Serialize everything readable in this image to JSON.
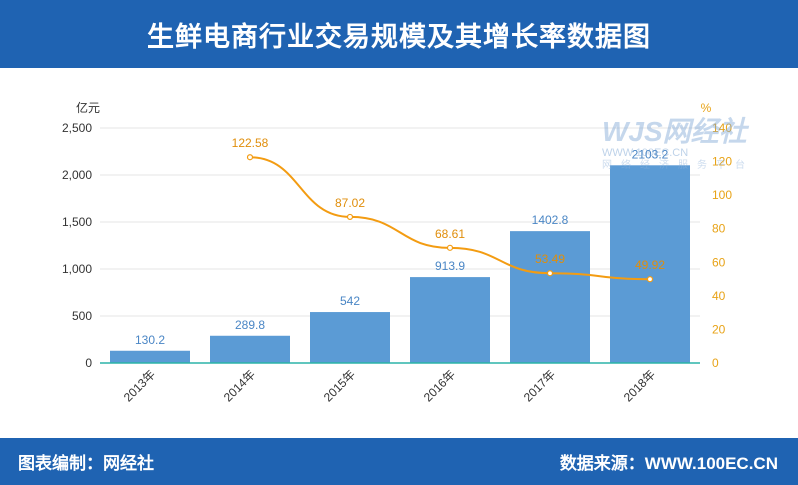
{
  "header": {
    "title": "生鲜电商行业交易规模及其增长率数据图"
  },
  "footer": {
    "left": "图表编制：网经社",
    "right": "数据来源：WWW.100EC.CN"
  },
  "watermark": {
    "main": "WJS网经社",
    "sub": "WWW.100EC.CN",
    "cn": "网络经济服务平台"
  },
  "colors": {
    "bar": "#5b9bd5",
    "line": "#f39c12",
    "header": "#1f63b2",
    "axis_right": "#e8a317"
  },
  "chart_data": {
    "type": "bar",
    "categories": [
      "2013年",
      "2014年",
      "2015年",
      "2016年",
      "2017年",
      "2018年"
    ],
    "series": [
      {
        "values": [
          130.2,
          289.8,
          542,
          913.9,
          1402.8,
          2103.2
        ],
        "labels": [
          "130.2",
          "289.8",
          "542",
          "913.9",
          "1402.8",
          "2103.2"
        ],
        "axis": "left",
        "kind": "bar"
      },
      {
        "values": [
          null,
          122.58,
          87.02,
          68.61,
          53.49,
          49.92
        ],
        "labels": [
          "",
          "122.58",
          "87.02",
          "68.61",
          "53.49",
          "49.92"
        ],
        "axis": "right",
        "kind": "line"
      }
    ],
    "ylabel": "亿元",
    "y2label": "%",
    "ylim": [
      0,
      2500
    ],
    "y2lim": [
      0,
      140
    ],
    "yticks": [
      0,
      500,
      1000,
      1500,
      2000,
      2500
    ],
    "ytick_labels": [
      "0",
      "500",
      "1,000",
      "1,500",
      "2,000",
      "2,500"
    ],
    "y2ticks": [
      0,
      20,
      40,
      60,
      80,
      100,
      120,
      140
    ],
    "y2tick_labels": [
      "0",
      "20",
      "40",
      "60",
      "80",
      "100",
      "120",
      "140"
    ],
    "grid": true,
    "legend": "none"
  }
}
